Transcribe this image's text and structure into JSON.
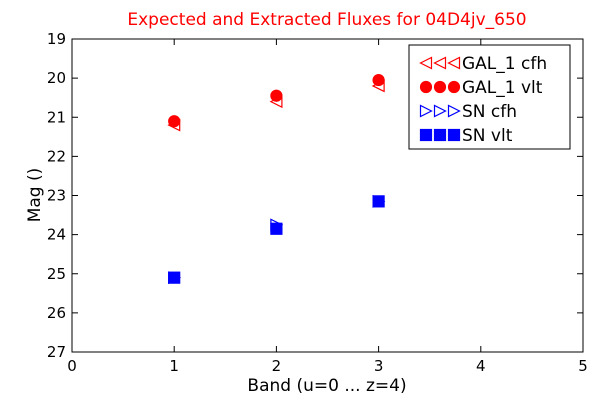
{
  "chart_data": {
    "type": "scatter",
    "title": "Expected and Extracted Fluxes for 04D4jv_650",
    "xlabel": "Band (u=0 ... z=4)",
    "ylabel": "Mag ()",
    "xlim": [
      0,
      5
    ],
    "ylim": [
      27,
      19
    ],
    "y_inverted": true,
    "grid": false,
    "legend_position": "top-right",
    "x_ticks": [
      "0",
      "1",
      "2",
      "3",
      "4",
      "5"
    ],
    "y_ticks": [
      "19",
      "20",
      "21",
      "22",
      "23",
      "24",
      "25",
      "26",
      "27"
    ],
    "series": [
      {
        "name": "GAL_1 cfh",
        "marker": "triangle-left",
        "filled": false,
        "color": "#ff0000",
        "x": [
          1,
          2,
          3
        ],
        "y": [
          21.2,
          20.6,
          20.2
        ]
      },
      {
        "name": "GAL_1 vlt",
        "marker": "circle",
        "filled": true,
        "color": "#ff0000",
        "x": [
          1,
          2,
          3
        ],
        "y": [
          21.1,
          20.45,
          20.05
        ]
      },
      {
        "name": "SN cfh",
        "marker": "triangle-right",
        "filled": false,
        "color": "#0000ff",
        "x": [
          1,
          2,
          3
        ],
        "y": [
          25.1,
          23.75,
          23.15
        ]
      },
      {
        "name": "SN vlt",
        "marker": "square",
        "filled": true,
        "color": "#0000ff",
        "x": [
          1,
          2,
          3
        ],
        "y": [
          25.1,
          23.85,
          23.15
        ]
      }
    ]
  }
}
